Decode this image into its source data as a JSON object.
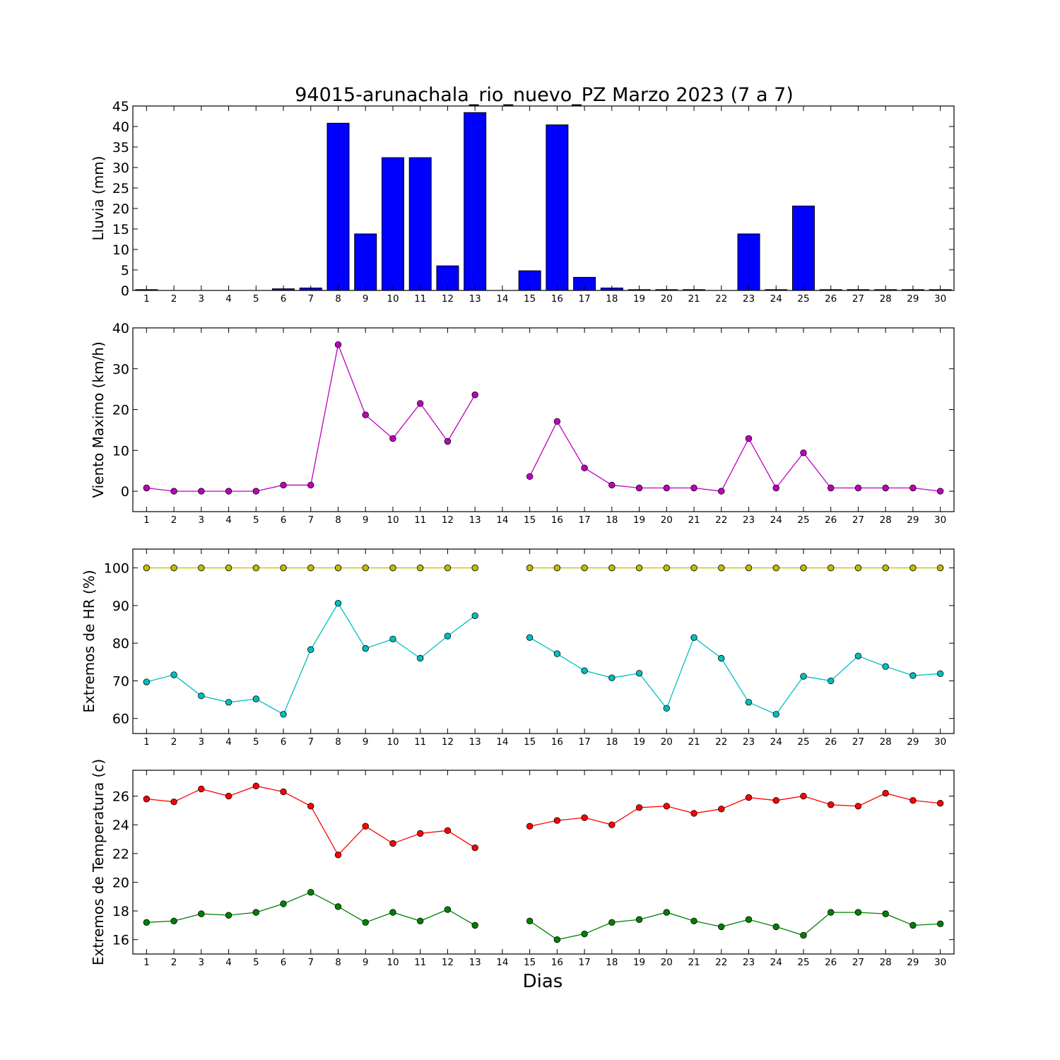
{
  "title": "94015-arunachala_rio_nuevo_PZ Marzo 2023  (7 a 7)",
  "xlabel": "Dias",
  "chart_data": [
    {
      "type": "bar",
      "ylabel": "Lluvia (mm)",
      "xlim": [
        0.5,
        30.5
      ],
      "ylim": [
        0,
        45
      ],
      "yticks": [
        0,
        5,
        10,
        15,
        20,
        25,
        30,
        35,
        40,
        45
      ],
      "categories": [
        1,
        2,
        3,
        4,
        5,
        6,
        7,
        8,
        9,
        10,
        11,
        12,
        13,
        14,
        15,
        16,
        17,
        18,
        19,
        20,
        21,
        22,
        23,
        24,
        25,
        26,
        27,
        28,
        29,
        30
      ],
      "values": [
        0.2,
        0,
        0,
        0,
        0,
        0.4,
        0.6,
        40.8,
        13.8,
        32.4,
        32.4,
        6.0,
        43.4,
        null,
        4.8,
        40.4,
        3.2,
        0.6,
        0.2,
        0.2,
        0.2,
        0,
        13.8,
        0.2,
        20.6,
        0.2,
        0.2,
        0.2,
        0.2,
        0.2
      ],
      "color": "#0000ff"
    },
    {
      "type": "line",
      "ylabel": "Viento Maximo (km/h)",
      "xlim": [
        0.5,
        30.5
      ],
      "ylim": [
        -5,
        40
      ],
      "yticks": [
        0,
        10,
        20,
        30,
        40
      ],
      "x": [
        1,
        2,
        3,
        4,
        5,
        6,
        7,
        8,
        9,
        10,
        11,
        12,
        13,
        14,
        15,
        16,
        17,
        18,
        19,
        20,
        21,
        22,
        23,
        24,
        25,
        26,
        27,
        28,
        29,
        30
      ],
      "series": [
        {
          "values": [
            0.8,
            0,
            0,
            0,
            0,
            1.5,
            1.5,
            35.9,
            18.7,
            12.9,
            21.5,
            12.2,
            23.6,
            null,
            3.6,
            17.1,
            5.7,
            1.5,
            0.8,
            0.8,
            0.8,
            0,
            12.9,
            0.8,
            9.4,
            0.8,
            0.8,
            0.8,
            0.8,
            0
          ],
          "color": "#bf00bf"
        }
      ]
    },
    {
      "type": "line",
      "ylabel": "Extremos de HR (%)",
      "xlim": [
        0.5,
        30.5
      ],
      "ylim": [
        56,
        105
      ],
      "yticks": [
        60,
        70,
        80,
        90,
        100
      ],
      "x": [
        1,
        2,
        3,
        4,
        5,
        6,
        7,
        8,
        9,
        10,
        11,
        12,
        13,
        14,
        15,
        16,
        17,
        18,
        19,
        20,
        21,
        22,
        23,
        24,
        25,
        26,
        27,
        28,
        29,
        30
      ],
      "series": [
        {
          "values": [
            100,
            100,
            100,
            100,
            100,
            100,
            100,
            100,
            100,
            100,
            100,
            100,
            100,
            null,
            100,
            100,
            100,
            100,
            100,
            100,
            100,
            100,
            100,
            100,
            100,
            100,
            100,
            100,
            100,
            100
          ],
          "color": "#bfbf00"
        },
        {
          "values": [
            69.7,
            71.6,
            66.0,
            64.3,
            65.2,
            61.1,
            78.3,
            90.6,
            78.6,
            81.1,
            76.0,
            81.9,
            87.3,
            null,
            81.5,
            77.2,
            72.7,
            70.8,
            72.0,
            62.7,
            81.5,
            76.0,
            64.3,
            61.1,
            71.2,
            70.0,
            76.6,
            73.8,
            71.4,
            71.9
          ],
          "color": "#00bfbf"
        }
      ]
    },
    {
      "type": "line",
      "ylabel": "Extremos de Temperatura (c)",
      "xlim": [
        0.5,
        30.5
      ],
      "ylim": [
        15,
        27.8
      ],
      "yticks": [
        16,
        18,
        20,
        22,
        24,
        26
      ],
      "x": [
        1,
        2,
        3,
        4,
        5,
        6,
        7,
        8,
        9,
        10,
        11,
        12,
        13,
        14,
        15,
        16,
        17,
        18,
        19,
        20,
        21,
        22,
        23,
        24,
        25,
        26,
        27,
        28,
        29,
        30
      ],
      "series": [
        {
          "values": [
            25.8,
            25.6,
            26.5,
            26.0,
            26.7,
            26.3,
            25.3,
            21.9,
            23.9,
            22.7,
            23.4,
            23.6,
            22.4,
            null,
            23.9,
            24.3,
            24.5,
            24.0,
            25.2,
            25.3,
            24.8,
            25.1,
            25.9,
            25.7,
            26.0,
            25.4,
            25.3,
            26.2,
            25.7,
            25.5
          ],
          "color": "#ff0000"
        },
        {
          "values": [
            17.2,
            17.3,
            17.8,
            17.7,
            17.9,
            18.5,
            19.3,
            18.3,
            17.2,
            17.9,
            17.3,
            18.1,
            17.0,
            null,
            17.3,
            16.0,
            16.4,
            17.2,
            17.4,
            17.9,
            17.3,
            16.9,
            17.4,
            16.9,
            16.3,
            17.9,
            17.9,
            17.8,
            17.0,
            17.1
          ],
          "color": "#008000"
        }
      ]
    }
  ]
}
